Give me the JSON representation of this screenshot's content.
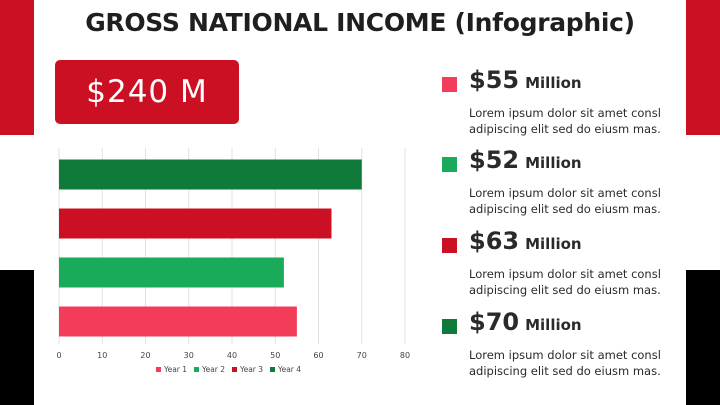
{
  "title": "GROSS NATIONAL INCOME (Infographic)",
  "total": "$240 M",
  "colors": {
    "red": "#cc1024",
    "green_dark": "#0f7a3a",
    "green_light": "#1aab5a",
    "pink": "#f23c5a"
  },
  "stats": [
    {
      "value": "$55",
      "unit": "Million",
      "color": "#f23c5a",
      "lines": [
        "Lorem ipsum dolor sit amet consl",
        "adipiscing elit sed do eiusm mas."
      ]
    },
    {
      "value": "$52",
      "unit": "Million",
      "color": "#1aab5a",
      "lines": [
        "Lorem ipsum dolor sit amet consl",
        "adipiscing elit sed do eiusm mas."
      ]
    },
    {
      "value": "$63",
      "unit": "Million",
      "color": "#cc1024",
      "lines": [
        "Lorem ipsum dolor sit amet consl",
        "adipiscing elit sed do eiusm mas."
      ]
    },
    {
      "value": "$70",
      "unit": "Million",
      "color": "#0f7a3a",
      "lines": [
        "Lorem ipsum dolor sit amet consl",
        "adipiscing elit sed do eiusm mas."
      ]
    }
  ],
  "chart_data": {
    "type": "bar",
    "orientation": "horizontal",
    "categories": [
      "Year 4",
      "Year 3",
      "Year 2",
      "Year 1"
    ],
    "series": [
      {
        "name": "Year 4",
        "value": 70,
        "color": "#0f7a3a"
      },
      {
        "name": "Year 3",
        "value": 63,
        "color": "#cc1024"
      },
      {
        "name": "Year 2",
        "value": 52,
        "color": "#1aab5a"
      },
      {
        "name": "Year 1",
        "value": 55,
        "color": "#f23c5a"
      }
    ],
    "legend": [
      {
        "name": "Year 1",
        "color": "#f23c5a"
      },
      {
        "name": "Year 2",
        "color": "#1aab5a"
      },
      {
        "name": "Year 3",
        "color": "#cc1024"
      },
      {
        "name": "Year 4",
        "color": "#0f7a3a"
      }
    ],
    "xlim": [
      0,
      80
    ],
    "xticks": [
      0,
      10,
      20,
      30,
      40,
      50,
      60,
      70,
      80
    ],
    "grid": true,
    "legend_position": "bottom"
  }
}
